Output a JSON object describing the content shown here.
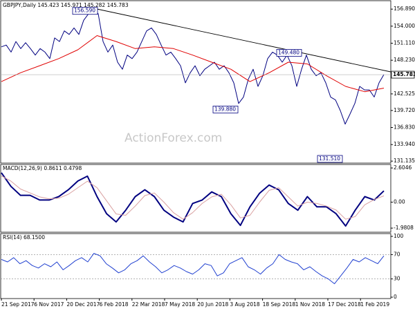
{
  "chart_data": [
    {
      "type": "line",
      "title": "GBPJPY,Daily 145.423 145.971 145.282 145.783",
      "ylim": [
        130.8,
        158.2
      ],
      "yticks": [
        {
          "value": 156.89,
          "label": "156.890"
        },
        {
          "value": 154.0,
          "label": "154.000"
        },
        {
          "value": 151.11,
          "label": "151.110"
        },
        {
          "value": 148.23,
          "label": "148.230"
        },
        {
          "value": 142.525,
          "label": "142.525"
        },
        {
          "value": 139.72,
          "label": "139.720"
        },
        {
          "value": 136.83,
          "label": "136.830"
        },
        {
          "value": 133.94,
          "label": "133.940"
        },
        {
          "value": 131.135,
          "label": "131.135"
        }
      ],
      "grid": false,
      "series": [
        {
          "color": "#000080",
          "values": [
            150.5,
            150.8,
            149.6,
            151.4,
            150.2,
            151.2,
            150.2,
            149.1,
            150.2,
            149.6,
            148.5,
            152.0,
            151.4,
            153.2,
            152.6,
            153.7,
            152.6,
            155.0,
            156.1,
            157.0,
            156.1,
            151.4,
            149.6,
            150.8,
            147.9,
            146.7,
            149.1,
            148.5,
            149.6,
            151.4,
            153.2,
            153.7,
            152.6,
            150.8,
            149.1,
            149.6,
            148.5,
            147.3,
            144.4,
            146.1,
            147.3,
            145.6,
            146.7,
            147.3,
            147.9,
            146.7,
            147.3,
            146.1,
            144.4,
            140.9,
            142.0,
            145.0,
            146.7,
            143.8,
            145.6,
            148.5,
            149.6,
            149.1,
            147.9,
            149.1,
            147.3,
            143.8,
            146.7,
            149.1,
            146.7,
            145.6,
            146.1,
            144.4,
            142.0,
            141.5,
            139.7,
            137.4,
            139.1,
            140.9,
            143.8,
            143.2,
            143.2,
            142.0,
            144.4,
            145.8
          ]
        },
        {
          "color": "#e00000",
          "values": [
            144.6,
            146.1,
            147.3,
            148.5,
            150.0,
            152.4,
            151.4,
            150.2,
            150.5,
            150.2,
            149.1,
            147.9,
            146.7,
            144.6,
            146.1,
            147.9,
            147.6,
            145.6,
            143.8,
            142.9,
            143.5
          ]
        }
      ],
      "annotations": [
        {
          "value": 156.59,
          "label": "156.590"
        },
        {
          "value": 149.48,
          "label": "149.480"
        },
        {
          "value": 139.88,
          "label": "139.880"
        },
        {
          "value": 131.51,
          "label": "131.510"
        }
      ],
      "last_price": {
        "value": 145.783,
        "label": "145.783"
      },
      "watermark": "ActionForex.com"
    },
    {
      "type": "line",
      "title": "MACD(12,26,9) 0.8611 0.4798",
      "ylim": [
        -2.24,
        2.87
      ],
      "yticks": [
        2.6046,
        {
          "value": 0,
          "label": "0.00"
        },
        -1.9808
      ],
      "series": [
        {
          "color": "#000080",
          "values": [
            2.24,
            1.2,
            0.52,
            0.52,
            0.16,
            0.16,
            0.42,
            0.94,
            1.61,
            1.98,
            0.42,
            -0.88,
            -1.51,
            -0.62,
            0.42,
            0.94,
            0.42,
            -0.62,
            -1.14,
            -1.51,
            -0.1,
            0.16,
            0.78,
            0.42,
            -0.88,
            -1.77,
            -0.36,
            0.68,
            1.3,
            0.94,
            -0.1,
            -0.62,
            0.42,
            -0.36,
            -0.36,
            -0.88,
            -1.82,
            -0.62,
            0.42,
            0.16,
            0.86
          ]
        },
        {
          "color": "#d9a0a0",
          "values": [
            2.0,
            1.6,
            1.0,
            0.7,
            0.4,
            0.25,
            0.3,
            0.6,
            1.1,
            1.6,
            1.1,
            0.1,
            -0.9,
            -1.0,
            -0.3,
            0.5,
            0.7,
            0.0,
            -0.8,
            -1.3,
            -0.8,
            -0.1,
            0.4,
            0.6,
            -0.2,
            -1.2,
            -1.0,
            0.0,
            0.9,
            1.1,
            0.4,
            -0.3,
            0.0,
            -0.1,
            -0.3,
            -0.6,
            -1.3,
            -1.1,
            -0.2,
            0.2,
            0.48
          ]
        }
      ]
    },
    {
      "type": "line",
      "title": "RSI(14) 68.1500",
      "ylim": [
        0,
        100
      ],
      "yticks": [
        100,
        70,
        30,
        0
      ],
      "series": [
        {
          "color": "#2040d0",
          "values": [
            62,
            58,
            65,
            55,
            60,
            52,
            48,
            55,
            50,
            58,
            45,
            52,
            60,
            65,
            58,
            72,
            68,
            55,
            48,
            40,
            45,
            55,
            60,
            68,
            58,
            50,
            40,
            45,
            52,
            48,
            42,
            38,
            45,
            55,
            52,
            35,
            40,
            55,
            60,
            65,
            50,
            45,
            38,
            48,
            55,
            70,
            62,
            58,
            55,
            45,
            50,
            42,
            35,
            30,
            22,
            35,
            48,
            62,
            58,
            65,
            60,
            55,
            68
          ]
        }
      ],
      "x_labels": [
        "21 Sep 2017",
        "6 Nov 2017",
        "20 Dec 2017",
        "6 Feb 2018",
        "22 Mar 2018",
        "7 May 2018",
        "20 Jun 2018",
        "3 Aug 2018",
        "18 Sep 2018",
        "1 Nov 2018",
        "17 Dec 2018",
        "1 Feb 2019"
      ]
    }
  ]
}
